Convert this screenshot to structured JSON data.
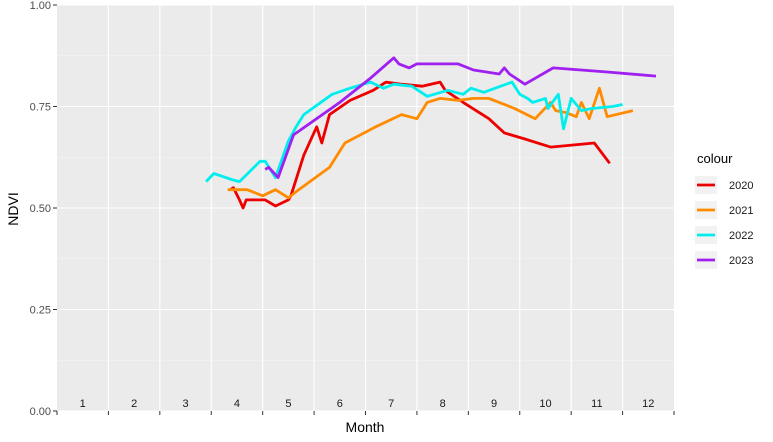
{
  "chart_data": {
    "type": "line",
    "title": "",
    "xlabel": "Month",
    "ylabel": "NDVI",
    "xlim": [
      0.5,
      12.5
    ],
    "ylim": [
      0,
      1
    ],
    "y_ticks": [
      0.0,
      0.25,
      0.5,
      0.75,
      1.0
    ],
    "y_tick_labels": [
      "0.00",
      "0.25",
      "0.50",
      "0.75",
      "1.00"
    ],
    "month_labels": [
      "1",
      "2",
      "3",
      "4",
      "5",
      "6",
      "7",
      "8",
      "9",
      "10",
      "11",
      "12"
    ],
    "grid": true,
    "legend": {
      "title": "colour",
      "position": "right"
    },
    "series": [
      {
        "name": "2020",
        "color": "#ee0000",
        "points": [
          [
            3.87,
            0.545
          ],
          [
            3.93,
            0.55
          ],
          [
            4.05,
            0.52
          ],
          [
            4.12,
            0.5
          ],
          [
            4.18,
            0.52
          ],
          [
            4.3,
            0.52
          ],
          [
            4.55,
            0.52
          ],
          [
            4.75,
            0.505
          ],
          [
            5.0,
            0.52
          ],
          [
            5.05,
            0.53
          ],
          [
            5.3,
            0.63
          ],
          [
            5.55,
            0.7
          ],
          [
            5.65,
            0.66
          ],
          [
            5.8,
            0.73
          ],
          [
            6.2,
            0.765
          ],
          [
            6.65,
            0.79
          ],
          [
            6.9,
            0.81
          ],
          [
            7.2,
            0.805
          ],
          [
            7.6,
            0.8
          ],
          [
            7.95,
            0.81
          ],
          [
            8.05,
            0.79
          ],
          [
            8.4,
            0.76
          ],
          [
            8.9,
            0.72
          ],
          [
            9.2,
            0.685
          ],
          [
            9.6,
            0.67
          ],
          [
            10.1,
            0.65
          ],
          [
            10.95,
            0.66
          ],
          [
            11.25,
            0.61
          ]
        ]
      },
      {
        "name": "2021",
        "color": "#ff8c00",
        "points": [
          [
            3.82,
            0.545
          ],
          [
            4.2,
            0.545
          ],
          [
            4.5,
            0.53
          ],
          [
            4.75,
            0.545
          ],
          [
            5.0,
            0.525
          ],
          [
            5.2,
            0.545
          ],
          [
            5.8,
            0.6
          ],
          [
            6.1,
            0.66
          ],
          [
            6.7,
            0.7
          ],
          [
            7.2,
            0.73
          ],
          [
            7.5,
            0.72
          ],
          [
            7.7,
            0.76
          ],
          [
            7.95,
            0.77
          ],
          [
            8.3,
            0.765
          ],
          [
            8.6,
            0.77
          ],
          [
            8.9,
            0.77
          ],
          [
            9.4,
            0.745
          ],
          [
            9.8,
            0.72
          ],
          [
            10.1,
            0.76
          ],
          [
            10.2,
            0.74
          ],
          [
            10.4,
            0.735
          ],
          [
            10.6,
            0.725
          ],
          [
            10.7,
            0.76
          ],
          [
            10.85,
            0.72
          ],
          [
            11.05,
            0.795
          ],
          [
            11.2,
            0.725
          ],
          [
            11.7,
            0.74
          ]
        ]
      },
      {
        "name": "2022",
        "color": "#00eeee",
        "points": [
          [
            3.4,
            0.565
          ],
          [
            3.55,
            0.585
          ],
          [
            3.9,
            0.57
          ],
          [
            4.05,
            0.565
          ],
          [
            4.45,
            0.615
          ],
          [
            4.55,
            0.615
          ],
          [
            4.75,
            0.575
          ],
          [
            5.0,
            0.665
          ],
          [
            5.15,
            0.7
          ],
          [
            5.3,
            0.73
          ],
          [
            5.85,
            0.78
          ],
          [
            6.2,
            0.795
          ],
          [
            6.6,
            0.81
          ],
          [
            6.85,
            0.795
          ],
          [
            7.05,
            0.805
          ],
          [
            7.4,
            0.8
          ],
          [
            7.7,
            0.775
          ],
          [
            8.1,
            0.79
          ],
          [
            8.4,
            0.78
          ],
          [
            8.55,
            0.795
          ],
          [
            8.8,
            0.785
          ],
          [
            9.35,
            0.81
          ],
          [
            9.5,
            0.78
          ],
          [
            9.65,
            0.77
          ],
          [
            9.75,
            0.76
          ],
          [
            10.0,
            0.77
          ],
          [
            10.05,
            0.745
          ],
          [
            10.25,
            0.78
          ],
          [
            10.35,
            0.695
          ],
          [
            10.5,
            0.77
          ],
          [
            10.7,
            0.74
          ],
          [
            10.9,
            0.745
          ],
          [
            11.3,
            0.75
          ],
          [
            11.5,
            0.755
          ]
        ]
      },
      {
        "name": "2023",
        "color": "#a020f0",
        "points": [
          [
            4.55,
            0.595
          ],
          [
            4.62,
            0.6
          ],
          [
            4.8,
            0.575
          ],
          [
            5.1,
            0.68
          ],
          [
            6.0,
            0.76
          ],
          [
            6.6,
            0.82
          ],
          [
            7.05,
            0.87
          ],
          [
            7.15,
            0.855
          ],
          [
            7.35,
            0.845
          ],
          [
            7.5,
            0.855
          ],
          [
            8.3,
            0.855
          ],
          [
            8.6,
            0.84
          ],
          [
            9.1,
            0.83
          ],
          [
            9.2,
            0.845
          ],
          [
            9.3,
            0.83
          ],
          [
            9.6,
            0.805
          ],
          [
            10.15,
            0.845
          ],
          [
            11.2,
            0.835
          ],
          [
            12.15,
            0.825
          ]
        ]
      }
    ]
  }
}
